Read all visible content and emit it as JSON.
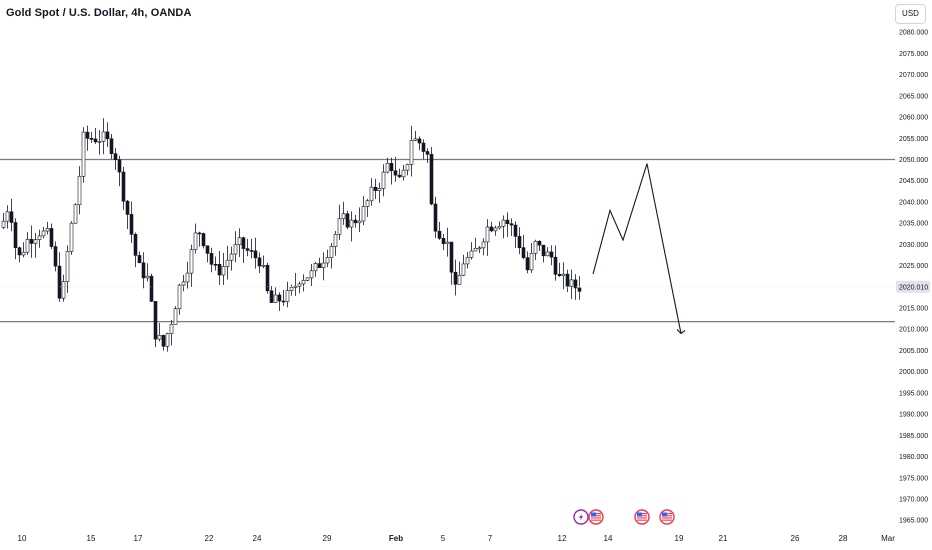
{
  "header": {
    "title": "Gold Spot / U.S. Dollar, 4h, OANDA",
    "currency_label": "USD"
  },
  "chart_data": {
    "type": "candlestick",
    "title": "Gold Spot / U.S. Dollar, 4h, OANDA",
    "price_axis": {
      "ylim": [
        1963,
        2085
      ],
      "ticks": [
        "2080.000",
        "2075.000",
        "2070.000",
        "2065.000",
        "2060.000",
        "2055.000",
        "2050.000",
        "2045.000",
        "2040.000",
        "2035.000",
        "2030.000",
        "2025.000",
        "2020.000",
        "2015.000",
        "2010.000",
        "2005.000",
        "2000.000",
        "1995.000",
        "1990.000",
        "1985.000",
        "1980.000",
        "1975.000",
        "1970.000",
        "1965.000"
      ],
      "current_price_label": "2020.010",
      "current_price": 2020.01
    },
    "time_axis": {
      "labels": [
        {
          "text": "10",
          "bold": false
        },
        {
          "text": "15",
          "bold": false
        },
        {
          "text": "17",
          "bold": false
        },
        {
          "text": "22",
          "bold": false
        },
        {
          "text": "24",
          "bold": false
        },
        {
          "text": "29",
          "bold": false
        },
        {
          "text": "Feb",
          "bold": true
        },
        {
          "text": "5",
          "bold": false
        },
        {
          "text": "7",
          "bold": false
        },
        {
          "text": "12",
          "bold": false
        },
        {
          "text": "14",
          "bold": false
        },
        {
          "text": "19",
          "bold": false
        },
        {
          "text": "21",
          "bold": false
        },
        {
          "text": "26",
          "bold": false
        },
        {
          "text": "28",
          "bold": false
        },
        {
          "text": "Mar",
          "bold": false
        }
      ]
    },
    "horizontal_levels": [
      2050.0,
      2011.8
    ],
    "projection_path": [
      2023.0,
      2038.0,
      2031.0,
      2049.0,
      2009.0
    ],
    "event_markers": [
      "lightning-icon",
      "us-flag-icon",
      "us-flag-icon",
      "us-flag-icon"
    ],
    "colors": {
      "up": "#ffffff",
      "down": "#131722",
      "wick": "#131722",
      "level": "#787b86",
      "price_label_bg": "#e0e3eb"
    }
  }
}
